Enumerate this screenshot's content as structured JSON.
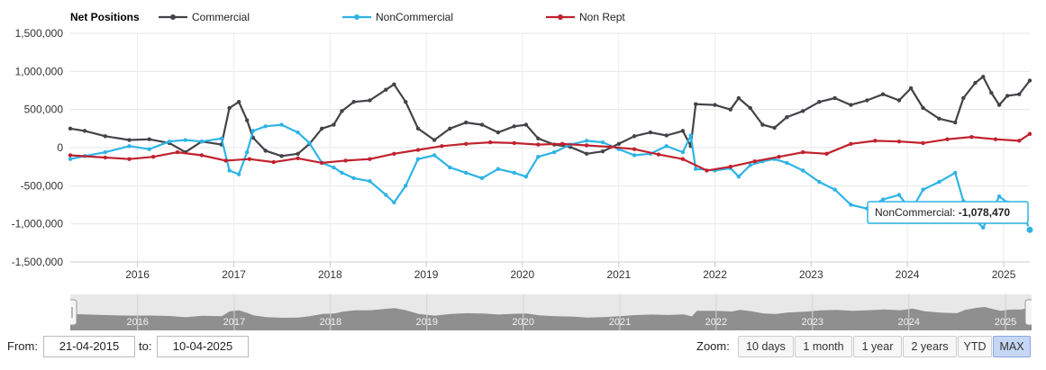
{
  "chart_data": {
    "type": "line",
    "title": "Net Positions",
    "series": [
      {
        "name": "Commercial",
        "color": "#434348",
        "values": [
          [
            "2015-04-21",
            250000
          ],
          [
            "2015-06-15",
            220000
          ],
          [
            "2015-09-01",
            150000
          ],
          [
            "2015-12-01",
            100000
          ],
          [
            "2016-02-15",
            110000
          ],
          [
            "2016-05-01",
            60000
          ],
          [
            "2016-07-01",
            -60000
          ],
          [
            "2016-09-01",
            80000
          ],
          [
            "2016-11-15",
            40000
          ],
          [
            "2016-12-15",
            520000
          ],
          [
            "2017-01-20",
            600000
          ],
          [
            "2017-02-20",
            360000
          ],
          [
            "2017-03-15",
            130000
          ],
          [
            "2017-05-01",
            -40000
          ],
          [
            "2017-07-01",
            -110000
          ],
          [
            "2017-09-01",
            -80000
          ],
          [
            "2017-10-15",
            50000
          ],
          [
            "2017-12-01",
            250000
          ],
          [
            "2018-01-15",
            300000
          ],
          [
            "2018-02-15",
            480000
          ],
          [
            "2018-04-01",
            600000
          ],
          [
            "2018-06-01",
            620000
          ],
          [
            "2018-08-01",
            760000
          ],
          [
            "2018-09-01",
            830000
          ],
          [
            "2018-10-15",
            600000
          ],
          [
            "2018-12-01",
            250000
          ],
          [
            "2019-02-01",
            100000
          ],
          [
            "2019-04-01",
            250000
          ],
          [
            "2019-06-01",
            330000
          ],
          [
            "2019-08-01",
            300000
          ],
          [
            "2019-10-01",
            200000
          ],
          [
            "2019-12-01",
            280000
          ],
          [
            "2020-01-15",
            300000
          ],
          [
            "2020-03-01",
            120000
          ],
          [
            "2020-05-01",
            40000
          ],
          [
            "2020-07-01",
            10000
          ],
          [
            "2020-09-01",
            -80000
          ],
          [
            "2020-11-01",
            -50000
          ],
          [
            "2021-01-01",
            50000
          ],
          [
            "2021-03-01",
            150000
          ],
          [
            "2021-05-01",
            200000
          ],
          [
            "2021-07-01",
            160000
          ],
          [
            "2021-09-01",
            220000
          ],
          [
            "2021-10-01",
            20000
          ],
          [
            "2021-10-20",
            570000
          ],
          [
            "2022-01-01",
            560000
          ],
          [
            "2022-03-01",
            500000
          ],
          [
            "2022-04-01",
            650000
          ],
          [
            "2022-05-15",
            520000
          ],
          [
            "2022-07-01",
            300000
          ],
          [
            "2022-08-15",
            260000
          ],
          [
            "2022-10-01",
            400000
          ],
          [
            "2022-12-01",
            480000
          ],
          [
            "2023-02-01",
            600000
          ],
          [
            "2023-04-01",
            650000
          ],
          [
            "2023-06-01",
            560000
          ],
          [
            "2023-08-01",
            620000
          ],
          [
            "2023-10-01",
            700000
          ],
          [
            "2023-12-01",
            620000
          ],
          [
            "2024-01-15",
            780000
          ],
          [
            "2024-03-01",
            520000
          ],
          [
            "2024-05-01",
            380000
          ],
          [
            "2024-07-01",
            330000
          ],
          [
            "2024-08-01",
            650000
          ],
          [
            "2024-09-15",
            850000
          ],
          [
            "2024-10-15",
            930000
          ],
          [
            "2024-11-15",
            720000
          ],
          [
            "2024-12-15",
            560000
          ],
          [
            "2025-01-15",
            680000
          ],
          [
            "2025-03-01",
            700000
          ],
          [
            "2025-04-10",
            880000
          ]
        ]
      },
      {
        "name": "NonCommercial",
        "color": "#2eb4e6",
        "values": [
          [
            "2015-04-21",
            -150000
          ],
          [
            "2015-06-15",
            -110000
          ],
          [
            "2015-09-01",
            -60000
          ],
          [
            "2015-12-01",
            20000
          ],
          [
            "2016-02-15",
            -20000
          ],
          [
            "2016-05-01",
            80000
          ],
          [
            "2016-07-01",
            100000
          ],
          [
            "2016-09-01",
            80000
          ],
          [
            "2016-11-15",
            120000
          ],
          [
            "2016-12-15",
            -300000
          ],
          [
            "2017-01-20",
            -350000
          ],
          [
            "2017-02-20",
            -60000
          ],
          [
            "2017-03-15",
            220000
          ],
          [
            "2017-05-01",
            280000
          ],
          [
            "2017-07-01",
            300000
          ],
          [
            "2017-09-01",
            200000
          ],
          [
            "2017-10-15",
            60000
          ],
          [
            "2017-12-01",
            -200000
          ],
          [
            "2018-01-15",
            -260000
          ],
          [
            "2018-02-15",
            -330000
          ],
          [
            "2018-04-01",
            -400000
          ],
          [
            "2018-06-01",
            -440000
          ],
          [
            "2018-08-01",
            -620000
          ],
          [
            "2018-09-01",
            -720000
          ],
          [
            "2018-10-15",
            -500000
          ],
          [
            "2018-12-01",
            -150000
          ],
          [
            "2019-02-01",
            -100000
          ],
          [
            "2019-04-01",
            -260000
          ],
          [
            "2019-06-01",
            -330000
          ],
          [
            "2019-08-01",
            -400000
          ],
          [
            "2019-10-01",
            -280000
          ],
          [
            "2019-12-01",
            -330000
          ],
          [
            "2020-01-15",
            -380000
          ],
          [
            "2020-03-01",
            -120000
          ],
          [
            "2020-05-01",
            -60000
          ],
          [
            "2020-07-01",
            40000
          ],
          [
            "2020-09-01",
            90000
          ],
          [
            "2020-11-01",
            70000
          ],
          [
            "2021-01-01",
            -20000
          ],
          [
            "2021-03-01",
            -100000
          ],
          [
            "2021-05-01",
            -80000
          ],
          [
            "2021-07-01",
            20000
          ],
          [
            "2021-09-01",
            -60000
          ],
          [
            "2021-10-01",
            160000
          ],
          [
            "2021-10-20",
            -280000
          ],
          [
            "2022-01-01",
            -300000
          ],
          [
            "2022-03-01",
            -270000
          ],
          [
            "2022-04-01",
            -380000
          ],
          [
            "2022-05-15",
            -230000
          ],
          [
            "2022-07-01",
            -180000
          ],
          [
            "2022-08-15",
            -150000
          ],
          [
            "2022-10-01",
            -200000
          ],
          [
            "2022-12-01",
            -300000
          ],
          [
            "2023-02-01",
            -450000
          ],
          [
            "2023-04-01",
            -550000
          ],
          [
            "2023-06-01",
            -750000
          ],
          [
            "2023-08-01",
            -800000
          ],
          [
            "2023-10-01",
            -680000
          ],
          [
            "2023-12-01",
            -620000
          ],
          [
            "2024-01-15",
            -830000
          ],
          [
            "2024-03-01",
            -550000
          ],
          [
            "2024-05-01",
            -450000
          ],
          [
            "2024-07-01",
            -330000
          ],
          [
            "2024-08-01",
            -700000
          ],
          [
            "2024-09-15",
            -950000
          ],
          [
            "2024-10-15",
            -1050000
          ],
          [
            "2024-11-15",
            -840000
          ],
          [
            "2024-12-15",
            -640000
          ],
          [
            "2025-01-15",
            -720000
          ],
          [
            "2025-03-01",
            -760000
          ],
          [
            "2025-04-10",
            -1078470
          ]
        ]
      },
      {
        "name": "Non Rept",
        "color": "#c0222e",
        "values": [
          [
            "2015-04-21",
            -100000
          ],
          [
            "2015-09-01",
            -130000
          ],
          [
            "2015-12-01",
            -150000
          ],
          [
            "2016-03-01",
            -120000
          ],
          [
            "2016-06-01",
            -60000
          ],
          [
            "2016-09-01",
            -100000
          ],
          [
            "2016-12-01",
            -170000
          ],
          [
            "2017-03-01",
            -150000
          ],
          [
            "2017-06-01",
            -190000
          ],
          [
            "2017-09-01",
            -140000
          ],
          [
            "2017-12-01",
            -200000
          ],
          [
            "2018-03-01",
            -170000
          ],
          [
            "2018-06-01",
            -150000
          ],
          [
            "2018-09-01",
            -80000
          ],
          [
            "2018-12-01",
            -30000
          ],
          [
            "2019-03-01",
            20000
          ],
          [
            "2019-06-01",
            50000
          ],
          [
            "2019-09-01",
            70000
          ],
          [
            "2019-12-01",
            60000
          ],
          [
            "2020-03-01",
            40000
          ],
          [
            "2020-06-01",
            50000
          ],
          [
            "2020-09-01",
            30000
          ],
          [
            "2020-12-01",
            10000
          ],
          [
            "2021-03-01",
            -20000
          ],
          [
            "2021-06-01",
            -90000
          ],
          [
            "2021-09-01",
            -150000
          ],
          [
            "2021-12-01",
            -300000
          ],
          [
            "2022-03-01",
            -250000
          ],
          [
            "2022-06-01",
            -180000
          ],
          [
            "2022-09-01",
            -120000
          ],
          [
            "2022-12-01",
            -60000
          ],
          [
            "2023-03-01",
            -80000
          ],
          [
            "2023-06-01",
            50000
          ],
          [
            "2023-09-01",
            90000
          ],
          [
            "2023-12-01",
            80000
          ],
          [
            "2024-03-01",
            60000
          ],
          [
            "2024-06-01",
            110000
          ],
          [
            "2024-09-01",
            140000
          ],
          [
            "2024-12-01",
            110000
          ],
          [
            "2025-03-01",
            90000
          ],
          [
            "2025-04-10",
            180000
          ]
        ]
      }
    ],
    "x_type": "date",
    "xlim": [
      "2015-04-21",
      "2025-04-10"
    ],
    "xticks": [
      "2016",
      "2017",
      "2018",
      "2019",
      "2020",
      "2021",
      "2022",
      "2023",
      "2024",
      "2025"
    ],
    "ylim": [
      -1500000,
      1500000
    ],
    "yticks": [
      1500000,
      1000000,
      500000,
      0,
      -500000,
      -1000000,
      -1500000
    ],
    "ytick_labels": [
      "1,500,000",
      "1,000,000",
      "500,000",
      "0",
      "-500,000",
      "-1,000,000",
      "-1,500,000"
    ],
    "grid": true,
    "legend_placement": "top-left",
    "tooltip": {
      "series": "NonCommercial",
      "label": "NonCommercial: ",
      "value": "-1,078,470"
    }
  },
  "navigator": {
    "tick_labels": [
      "2016",
      "2017",
      "2018",
      "2019",
      "2020",
      "2021",
      "2022",
      "2023",
      "2024",
      "2025"
    ]
  },
  "range": {
    "from_label": "From:",
    "from_value": "21-04-2015",
    "to_label": "to:",
    "to_value": "10-04-2025"
  },
  "zoom": {
    "label": "Zoom:",
    "buttons": [
      "10 days",
      "1 month",
      "1 year",
      "2 years",
      "YTD",
      "MAX"
    ],
    "active": "MAX"
  }
}
